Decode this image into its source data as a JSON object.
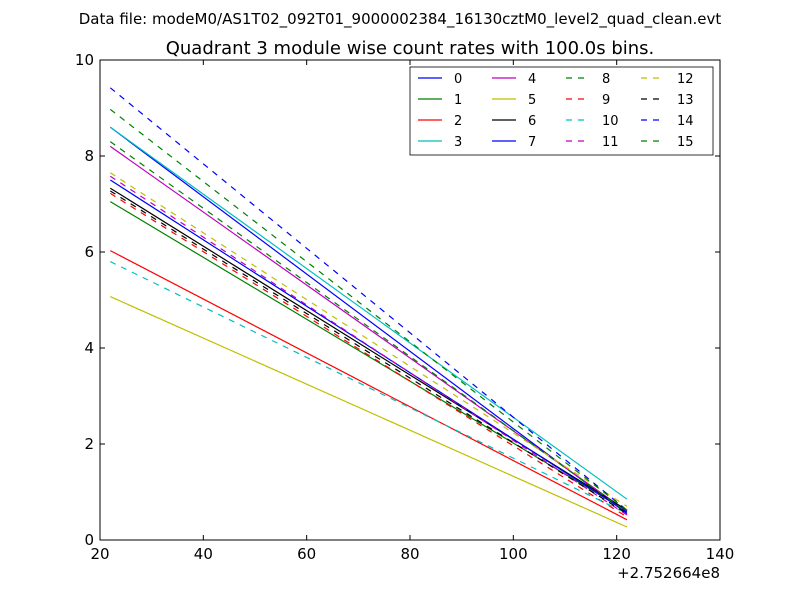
{
  "chart_data": {
    "type": "line",
    "suptitle": "Data file: modeM0/AS1T02_092T01_9000002384_16130cztM0_level2_quad_clean.evt",
    "title": "Quadrant 3 module wise count rates with 100.0s bins.",
    "xlabel": "",
    "ylabel": "",
    "x_offset_label": "+2.752664e8",
    "xlim": [
      20,
      140
    ],
    "ylim": [
      0,
      10
    ],
    "xticks": [
      20,
      40,
      60,
      80,
      100,
      120,
      140
    ],
    "yticks": [
      0,
      2,
      4,
      6,
      8,
      10
    ],
    "grid": false,
    "legend_position": "top-right",
    "x": [
      22,
      122
    ],
    "series": [
      {
        "name": "0",
        "style": "solid",
        "color": "#0000ff",
        "values": [
          8.6,
          0.55
        ]
      },
      {
        "name": "1",
        "style": "solid",
        "color": "#008000",
        "values": [
          7.05,
          0.6
        ]
      },
      {
        "name": "2",
        "style": "solid",
        "color": "#ff0000",
        "values": [
          6.03,
          0.42
        ]
      },
      {
        "name": "3",
        "style": "solid",
        "color": "#00bfbf",
        "values": [
          8.6,
          0.85
        ]
      },
      {
        "name": "4",
        "style": "solid",
        "color": "#bf00bf",
        "values": [
          8.2,
          0.6
        ]
      },
      {
        "name": "5",
        "style": "solid",
        "color": "#bfbf00",
        "values": [
          5.07,
          0.27
        ]
      },
      {
        "name": "6",
        "style": "solid",
        "color": "#000000",
        "values": [
          7.33,
          0.62
        ]
      },
      {
        "name": "7",
        "style": "solid",
        "color": "#0000ff",
        "values": [
          7.5,
          0.58
        ]
      },
      {
        "name": "8",
        "style": "dashed",
        "color": "#008000",
        "values": [
          8.3,
          0.58
        ]
      },
      {
        "name": "9",
        "style": "dashed",
        "color": "#ff0000",
        "values": [
          7.22,
          0.48
        ]
      },
      {
        "name": "10",
        "style": "dashed",
        "color": "#00bfbf",
        "values": [
          5.8,
          0.55
        ]
      },
      {
        "name": "11",
        "style": "dashed",
        "color": "#bf00bf",
        "values": [
          7.58,
          0.52
        ]
      },
      {
        "name": "12",
        "style": "dashed",
        "color": "#bfbf00",
        "values": [
          7.65,
          0.7
        ]
      },
      {
        "name": "13",
        "style": "dashed",
        "color": "#000000",
        "values": [
          7.27,
          0.55
        ]
      },
      {
        "name": "14",
        "style": "dashed",
        "color": "#0000ff",
        "values": [
          9.42,
          0.62
        ]
      },
      {
        "name": "15",
        "style": "dashed",
        "color": "#008000",
        "values": [
          8.97,
          0.62
        ]
      }
    ]
  }
}
